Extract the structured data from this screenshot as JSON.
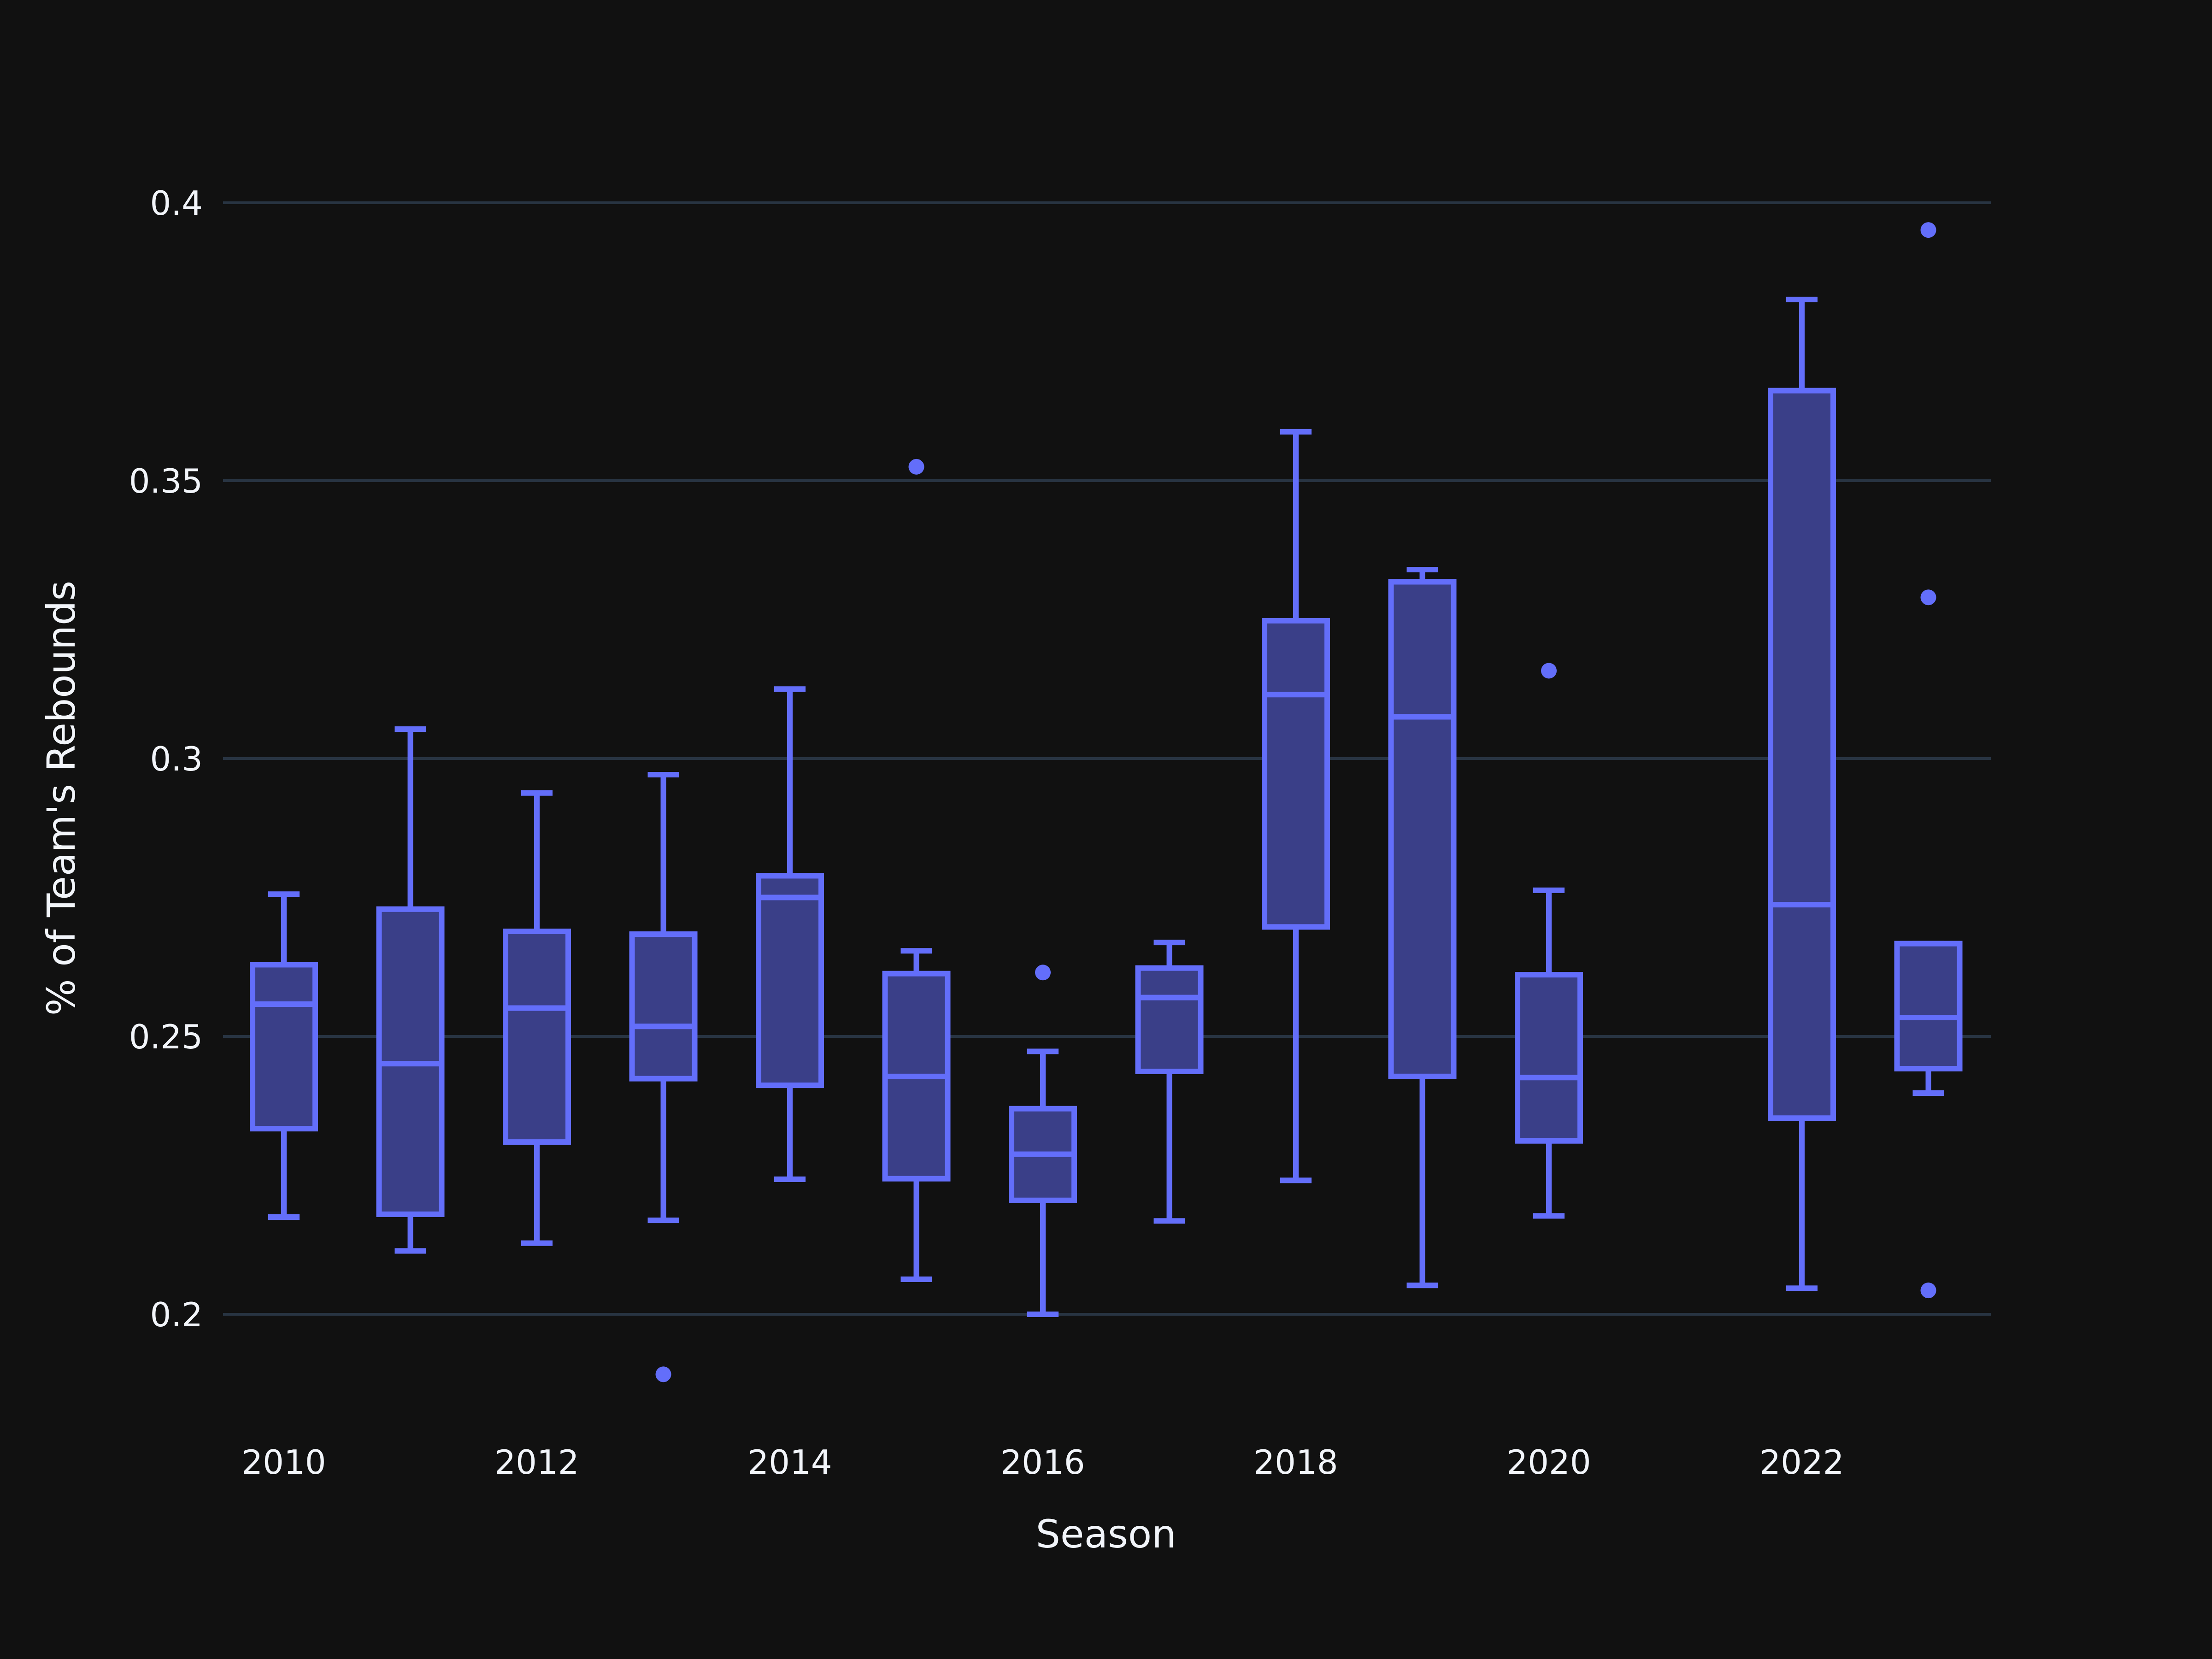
{
  "colors": {
    "background": "#111111",
    "grid": "#283442",
    "box_stroke": "#636efa",
    "box_fill": "#3a3f88",
    "text": "#f2f5fa"
  },
  "chart_data": {
    "type": "box",
    "title": "",
    "xlabel": "Season",
    "ylabel": "% of Team's Rebounds",
    "xlim": [
      2009.3,
      2023.7
    ],
    "ylim": [
      0.18,
      0.425
    ],
    "x_ticks": [
      {
        "value": 2010,
        "label": "2010"
      },
      {
        "value": 2012,
        "label": "2012"
      },
      {
        "value": 2014,
        "label": "2014"
      },
      {
        "value": 2016,
        "label": "2016"
      },
      {
        "value": 2018,
        "label": "2018"
      },
      {
        "value": 2020,
        "label": "2020"
      },
      {
        "value": 2022,
        "label": "2022"
      }
    ],
    "y_ticks": [
      {
        "value": 0.2,
        "label": "0.2"
      },
      {
        "value": 0.25,
        "label": "0.25"
      },
      {
        "value": 0.3,
        "label": "0.3"
      },
      {
        "value": 0.35,
        "label": "0.35"
      },
      {
        "value": 0.4,
        "label": "0.4"
      }
    ],
    "grid": {
      "y": true,
      "x": false
    },
    "legend": "none",
    "boxes": [
      {
        "season": 2010,
        "min": 0.2175,
        "q1": 0.2334,
        "median": 0.2558,
        "q3": 0.2629,
        "max": 0.2756,
        "outliers": []
      },
      {
        "season": 2011,
        "min": 0.2114,
        "q1": 0.218,
        "median": 0.2451,
        "q3": 0.2729,
        "max": 0.3053,
        "outliers": []
      },
      {
        "season": 2012,
        "min": 0.2128,
        "q1": 0.231,
        "median": 0.2551,
        "q3": 0.2689,
        "max": 0.2938,
        "outliers": []
      },
      {
        "season": 2013,
        "min": 0.2169,
        "q1": 0.2424,
        "median": 0.2518,
        "q3": 0.2684,
        "max": 0.2971,
        "outliers": [
          0.1892
        ]
      },
      {
        "season": 2014,
        "min": 0.2243,
        "q1": 0.2412,
        "median": 0.275,
        "q3": 0.2789,
        "max": 0.3125,
        "outliers": []
      },
      {
        "season": 2015,
        "min": 0.2063,
        "q1": 0.2244,
        "median": 0.2428,
        "q3": 0.2613,
        "max": 0.2654,
        "outliers": [
          0.3525
        ]
      },
      {
        "season": 2016,
        "min": 0.2,
        "q1": 0.2205,
        "median": 0.2288,
        "q3": 0.237,
        "max": 0.2473,
        "outliers": [
          0.2615
        ]
      },
      {
        "season": 2017,
        "min": 0.2168,
        "q1": 0.2437,
        "median": 0.257,
        "q3": 0.2623,
        "max": 0.2669,
        "outliers": []
      },
      {
        "season": 2018,
        "min": 0.2241,
        "q1": 0.2697,
        "median": 0.3115,
        "q3": 0.3248,
        "max": 0.3588,
        "outliers": []
      },
      {
        "season": 2019,
        "min": 0.2052,
        "q1": 0.2428,
        "median": 0.3075,
        "q3": 0.3318,
        "max": 0.334,
        "outliers": []
      },
      {
        "season": 2020,
        "min": 0.2177,
        "q1": 0.2312,
        "median": 0.2426,
        "q3": 0.2611,
        "max": 0.2763,
        "outliers": [
          0.3158
        ]
      },
      {
        "season": 2022,
        "min": 0.2047,
        "q1": 0.2353,
        "median": 0.2737,
        "q3": 0.3662,
        "max": 0.3826,
        "outliers": []
      },
      {
        "season": 2023,
        "min": 0.2398,
        "q1": 0.2442,
        "median": 0.2534,
        "q3": 0.2667,
        "max": 0.2667,
        "outliers": [
          0.2043,
          0.329,
          0.3951
        ]
      }
    ]
  }
}
